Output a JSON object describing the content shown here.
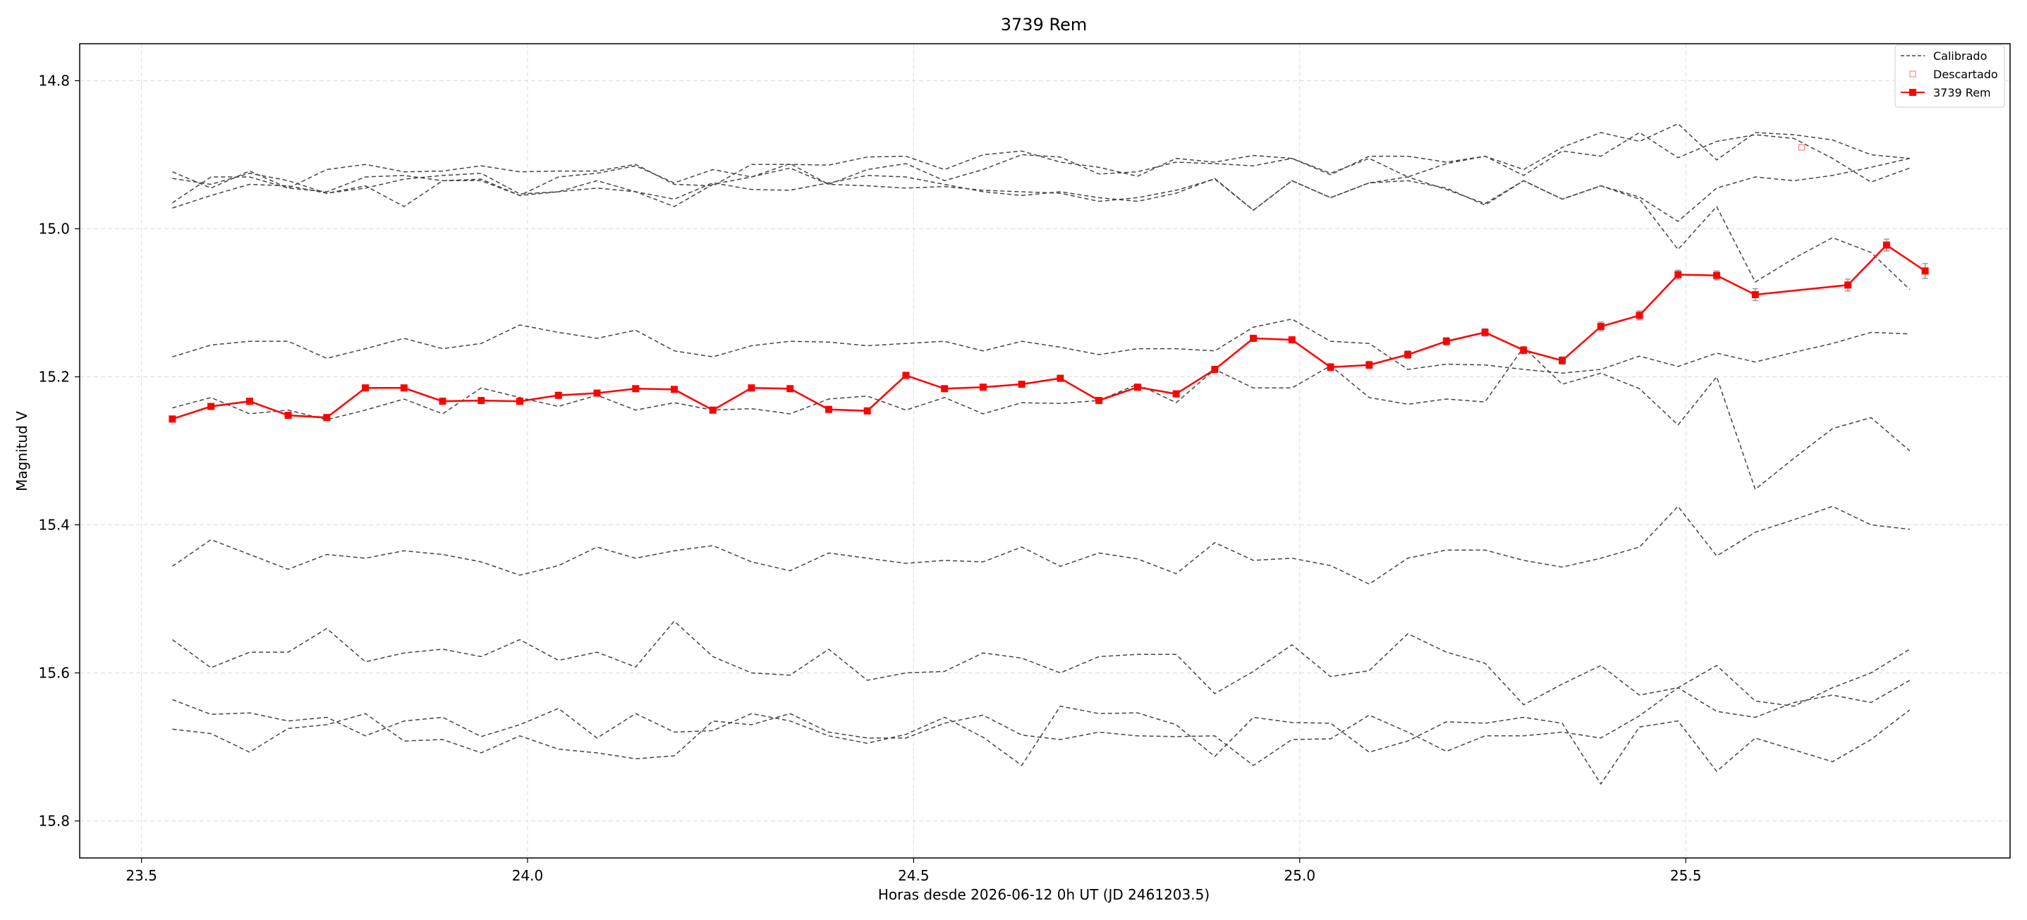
{
  "chart_data": {
    "type": "line",
    "title": "3739 Rem",
    "xlabel": "Horas desde 2026-06-12 0h UT (JD 2461203.5)",
    "ylabel": "Magnitud V",
    "xlim": [
      23.42,
      25.92
    ],
    "ylim": [
      15.85,
      14.75
    ],
    "y_inverted": true,
    "grid": true,
    "legend_position": "top-right",
    "x_ticks": [
      23.5,
      24.0,
      24.5,
      25.0,
      25.5
    ],
    "x_tick_labels": [
      "23.5",
      "24.0",
      "24.5",
      "25.0",
      "25.5"
    ],
    "y_ticks": [
      14.8,
      15.0,
      15.2,
      15.4,
      15.6,
      15.8
    ],
    "y_tick_labels": [
      "14.8",
      "15.0",
      "15.2",
      "15.4",
      "15.6",
      "15.8"
    ],
    "legend": [
      "Calibrado",
      "Descartado",
      "3739 Rem"
    ],
    "x": [
      23.54,
      23.59,
      23.64,
      23.69,
      23.74,
      23.79,
      23.84,
      23.89,
      23.94,
      23.99,
      24.04,
      24.09,
      24.14,
      24.19,
      24.24,
      24.29,
      24.34,
      24.39,
      24.44,
      24.49,
      24.54,
      24.59,
      24.64,
      24.69,
      24.74,
      24.79,
      24.84,
      24.89,
      24.94,
      24.99,
      25.04,
      25.09,
      25.14,
      25.19,
      25.24,
      25.29,
      25.34,
      25.39,
      25.44,
      25.49,
      25.54,
      25.59,
      25.64,
      25.69,
      25.74,
      25.79
    ],
    "comparison_series": [
      {
        "style": "calibrated",
        "values": [
          14.932,
          14.94,
          14.925,
          14.935,
          14.952,
          14.942,
          14.97,
          14.935,
          14.933,
          14.955,
          14.95,
          14.935,
          14.95,
          14.96,
          14.938,
          14.947,
          14.948,
          14.938,
          14.928,
          14.93,
          14.94,
          14.95,
          14.955,
          14.95,
          14.958,
          14.963,
          14.952,
          14.932,
          14.975,
          14.935,
          14.958,
          14.938,
          14.93,
          14.947,
          14.966,
          14.935,
          14.96,
          14.942,
          14.957,
          14.99,
          14.945,
          14.93,
          14.935,
          14.928,
          14.917,
          14.905
        ]
      },
      {
        "style": "calibrated",
        "values": [
          14.923,
          14.945,
          14.922,
          14.945,
          14.92,
          14.913,
          14.923,
          14.922,
          14.915,
          14.923,
          14.922,
          14.922,
          14.913,
          14.94,
          14.942,
          14.913,
          14.913,
          14.914,
          14.903,
          14.902,
          14.92,
          14.9,
          14.895,
          14.91,
          14.917,
          14.929,
          14.905,
          14.91,
          14.901,
          14.905,
          14.927,
          14.902,
          14.902,
          14.91,
          14.902,
          14.928,
          14.895,
          14.902,
          14.87,
          14.904,
          14.882,
          14.873,
          14.878,
          14.905,
          14.937,
          14.918
        ]
      },
      {
        "style": "calibrated",
        "values": [
          14.965,
          14.93,
          14.93,
          14.945,
          14.95,
          14.93,
          14.928,
          14.935,
          14.935,
          14.955,
          14.93,
          14.925,
          14.915,
          14.938,
          14.92,
          14.93,
          14.912,
          14.94,
          14.92,
          14.912,
          14.935,
          14.92,
          14.9,
          14.903,
          14.926,
          14.923,
          14.91,
          14.912,
          14.915,
          14.905,
          14.925,
          14.905,
          14.93,
          14.912,
          14.902,
          14.92,
          14.89,
          14.87,
          14.882,
          14.858,
          14.907,
          14.87,
          14.873,
          14.88,
          14.9,
          14.905
        ]
      },
      {
        "style": "calibrated",
        "values": [
          15.173,
          15.157,
          15.152,
          15.152,
          15.175,
          15.162,
          15.148,
          15.162,
          15.155,
          15.13,
          15.14,
          15.148,
          15.137,
          15.165,
          15.173,
          15.158,
          15.152,
          15.153,
          15.158,
          15.155,
          15.152,
          15.165,
          15.152,
          15.16,
          15.17,
          15.162,
          15.162,
          15.165,
          15.133,
          15.122,
          15.152,
          15.155,
          15.19,
          15.183,
          15.184,
          15.19,
          15.195,
          15.19,
          15.172,
          15.186,
          15.168,
          15.18,
          15.167,
          15.155,
          15.14,
          15.142
        ]
      },
      {
        "style": "calibrated",
        "values": [
          15.242,
          15.228,
          15.25,
          15.245,
          15.258,
          15.245,
          15.23,
          15.25,
          15.215,
          15.228,
          15.24,
          15.225,
          15.245,
          15.235,
          15.245,
          15.243,
          15.25,
          15.23,
          15.226,
          15.245,
          15.228,
          15.25,
          15.235,
          15.236,
          15.232,
          15.21,
          15.235,
          15.19,
          15.215,
          15.215,
          15.185,
          15.228,
          15.237,
          15.23,
          15.234,
          15.16,
          15.21,
          15.195,
          15.216,
          15.265,
          15.2,
          15.352,
          15.31,
          15.27,
          15.255,
          15.3
        ]
      },
      {
        "style": "calibrated",
        "values": [
          14.972,
          14.955,
          14.94,
          14.942,
          14.952,
          14.945,
          14.933,
          14.928,
          14.925,
          14.953,
          14.95,
          14.945,
          14.95,
          14.97,
          14.94,
          14.93,
          14.918,
          14.94,
          14.942,
          14.945,
          14.943,
          14.948,
          14.95,
          14.952,
          14.963,
          14.958,
          14.948,
          14.933,
          14.975,
          14.935,
          14.958,
          14.938,
          14.935,
          14.945,
          14.968,
          14.935,
          14.96,
          14.942,
          14.96,
          15.028,
          14.97,
          15.072,
          15.04,
          15.012,
          15.032,
          15.082
        ]
      },
      {
        "style": "calibrated",
        "values": [
          15.456,
          15.42,
          15.44,
          15.46,
          15.44,
          15.445,
          15.435,
          15.44,
          15.45,
          15.468,
          15.455,
          15.43,
          15.445,
          15.435,
          15.428,
          15.45,
          15.462,
          15.438,
          15.445,
          15.452,
          15.448,
          15.45,
          15.43,
          15.456,
          15.438,
          15.446,
          15.466,
          15.424,
          15.448,
          15.445,
          15.455,
          15.48,
          15.445,
          15.434,
          15.434,
          15.448,
          15.457,
          15.445,
          15.43,
          15.375,
          15.442,
          15.41,
          15.393,
          15.375,
          15.4,
          15.406
        ]
      },
      {
        "style": "calibrated",
        "values": [
          15.555,
          15.593,
          15.572,
          15.572,
          15.54,
          15.585,
          15.573,
          15.568,
          15.578,
          15.555,
          15.583,
          15.572,
          15.592,
          15.53,
          15.578,
          15.6,
          15.603,
          15.568,
          15.61,
          15.6,
          15.598,
          15.573,
          15.58,
          15.6,
          15.578,
          15.575,
          15.575,
          15.628,
          15.598,
          15.562,
          15.605,
          15.597,
          15.547,
          15.572,
          15.587,
          15.643,
          15.615,
          15.59,
          15.63,
          15.62,
          15.59,
          15.638,
          15.645,
          15.62,
          15.6,
          15.568
        ]
      },
      {
        "style": "calibrated",
        "values": [
          15.636,
          15.656,
          15.654,
          15.665,
          15.66,
          15.685,
          15.665,
          15.66,
          15.686,
          15.67,
          15.648,
          15.688,
          15.655,
          15.68,
          15.678,
          15.655,
          15.665,
          15.685,
          15.695,
          15.683,
          15.66,
          15.687,
          15.725,
          15.645,
          15.655,
          15.654,
          15.67,
          15.713,
          15.66,
          15.667,
          15.668,
          15.707,
          15.692,
          15.666,
          15.668,
          15.66,
          15.668,
          15.75,
          15.673,
          15.665,
          15.733,
          15.688,
          15.704,
          15.72,
          15.69,
          15.65
        ]
      },
      {
        "style": "calibrated",
        "values": [
          15.676,
          15.682,
          15.707,
          15.675,
          15.67,
          15.655,
          15.692,
          15.69,
          15.708,
          15.685,
          15.703,
          15.708,
          15.716,
          15.712,
          15.665,
          15.67,
          15.655,
          15.68,
          15.688,
          15.688,
          15.668,
          15.657,
          15.684,
          15.69,
          15.68,
          15.685,
          15.686,
          15.685,
          15.725,
          15.69,
          15.689,
          15.657,
          15.68,
          15.706,
          15.685,
          15.685,
          15.68,
          15.688,
          15.658,
          15.62,
          15.652,
          15.66,
          15.64,
          15.63,
          15.64,
          15.61
        ]
      }
    ],
    "series": [
      {
        "name": "3739 Rem",
        "x": [
          23.54,
          23.59,
          23.64,
          23.69,
          23.74,
          23.79,
          23.84,
          23.89,
          23.94,
          23.99,
          24.04,
          24.09,
          24.14,
          24.19,
          24.24,
          24.29,
          24.34,
          24.39,
          24.44,
          24.49,
          24.54,
          24.59,
          24.64,
          24.69,
          24.74,
          24.79,
          24.84,
          24.89,
          24.94,
          24.99,
          25.04,
          25.09,
          25.14,
          25.19,
          25.24,
          25.29,
          25.34,
          25.39,
          25.44,
          25.49,
          25.54,
          25.59,
          25.71,
          25.76,
          25.81
        ],
        "values": [
          15.257,
          15.24,
          15.233,
          15.252,
          15.255,
          15.215,
          15.215,
          15.233,
          15.232,
          15.233,
          15.225,
          15.222,
          15.216,
          15.217,
          15.245,
          15.215,
          15.216,
          15.244,
          15.246,
          15.198,
          15.216,
          15.214,
          15.21,
          15.202,
          15.232,
          15.214,
          15.223,
          15.19,
          15.148,
          15.15,
          15.187,
          15.184,
          15.17,
          15.152,
          15.14,
          15.164,
          15.178,
          15.132,
          15.117,
          15.062,
          15.063,
          15.089,
          15.076,
          15.022,
          15.057
        ],
        "errors": [
          0.004,
          0.004,
          0.004,
          0.004,
          0.004,
          0.004,
          0.004,
          0.004,
          0.004,
          0.004,
          0.004,
          0.004,
          0.004,
          0.004,
          0.004,
          0.004,
          0.004,
          0.004,
          0.004,
          0.004,
          0.004,
          0.004,
          0.004,
          0.004,
          0.004,
          0.004,
          0.004,
          0.004,
          0.004,
          0.004,
          0.005,
          0.005,
          0.005,
          0.005,
          0.005,
          0.005,
          0.005,
          0.006,
          0.006,
          0.006,
          0.006,
          0.008,
          0.008,
          0.008,
          0.01
        ]
      }
    ],
    "discarded": [
      {
        "x": 25.65,
        "y": 14.89
      }
    ],
    "colors": {
      "calibrated": "#444444",
      "target": "#ff0000",
      "discarded": "#ff8888",
      "grid": "#dddddd",
      "errorbar": "#999999"
    }
  }
}
